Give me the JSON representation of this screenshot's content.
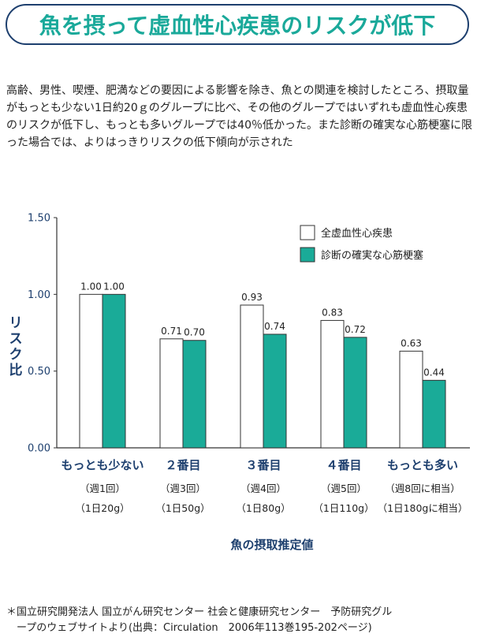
{
  "title": "魚を摂って虚血性心疾患のリスクが低下",
  "lead": "高齢、男性、喫煙、肥満などの要因による影響を除き、魚との関連を検討したところ、摂取量がもっとも少ない1日約20ｇのグループに比べ、その他のグループではいずれも虚血性心疾患のリスクが低下し、もっとも多いグループでは40％低かった。また診断の確実な心筋梗塞に限った場合では、よりはっきりリスクの低下傾向が示された",
  "footnote": {
    "line1": "＊国立研究開発法人 国立がん研究センター 社会と健康研究センター　予防研究グル",
    "line2": "　ープのウェブサイトより(出典：Circulation　2006年113巻195-202ページ)"
  },
  "chart_data": {
    "type": "bar",
    "categories": [
      "もっとも少ない",
      "２番目",
      "３番目",
      "４番目",
      "もっとも多い"
    ],
    "category_sub1": [
      "（週1回）",
      "（週3回）",
      "（週4回）",
      "（週5回）",
      "（週8回に相当）"
    ],
    "category_sub2": [
      "（1日20g）",
      "（1日50g）",
      "（1日80g）",
      "（1日110g）",
      "（1日180gに相当）"
    ],
    "series": [
      {
        "name": "全虚血性心疾患",
        "values": [
          1.0,
          0.71,
          0.93,
          0.83,
          0.63
        ],
        "color": "#ffffff"
      },
      {
        "name": "診断の確実な心筋梗塞",
        "values": [
          1.0,
          0.7,
          0.74,
          0.72,
          0.44
        ],
        "color": "#1aab98"
      }
    ],
    "ylabel": "リスク比",
    "xlabel": "魚の摂取推定値",
    "yticks": [
      "0.00",
      "0.50",
      "1.00",
      "1.50"
    ],
    "ylim": [
      0,
      1.5
    ],
    "legend_position": "top-right",
    "grid": false
  },
  "colors": {
    "title_text": "#1aa99a",
    "title_border": "#1d3f6e",
    "bar_teal": "#1aab98",
    "axis_label": "#1d3f6e"
  }
}
